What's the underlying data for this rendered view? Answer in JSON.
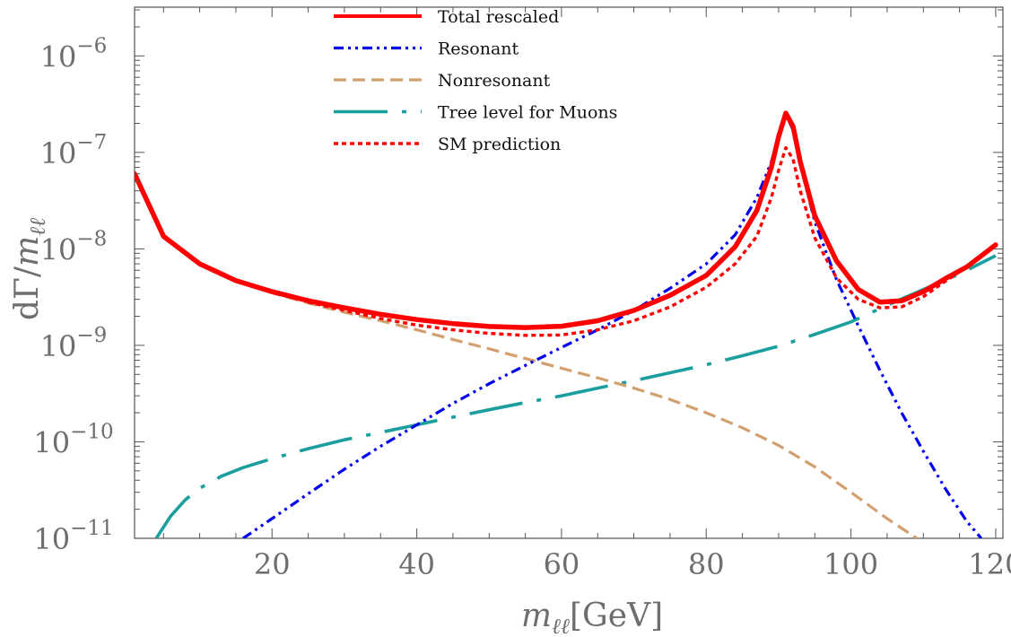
{
  "chart_data": {
    "type": "line",
    "title": "",
    "xlabel_parts": [
      "m",
      "ℓℓ",
      "[GeV]"
    ],
    "ylabel_parts": [
      "dΓ/",
      "m",
      "ℓℓ"
    ],
    "x_axis": {
      "range": [
        1,
        121
      ],
      "ticks": [
        20,
        40,
        60,
        80,
        100,
        120
      ],
      "tick_labels": [
        "20",
        "40",
        "60",
        "80",
        "100",
        "120"
      ]
    },
    "y_axis": {
      "scale": "log",
      "range": [
        1e-11,
        3.2e-06
      ],
      "ticks": [
        1e-11,
        1e-10,
        1e-09,
        1e-08,
        1e-07,
        1e-06
      ],
      "tick_exponents": [
        "−11",
        "−10",
        "−9",
        "−8",
        "−7",
        "−6"
      ],
      "tick_base": "10"
    },
    "legend_position": "top-center",
    "grid": false,
    "series": [
      {
        "name": "Total rescaled",
        "color": "#ff0000",
        "style": "solid",
        "x": [
          1,
          5,
          10,
          15,
          20,
          25,
          30,
          35,
          40,
          45,
          50,
          55,
          60,
          65,
          70,
          75,
          80,
          84,
          87,
          89,
          90,
          91,
          92,
          93,
          95,
          98,
          101,
          104,
          107,
          110,
          113,
          116,
          120
        ],
        "y": [
          6e-08,
          1.35e-08,
          7e-09,
          4.7e-09,
          3.6e-09,
          2.9e-09,
          2.45e-09,
          2.1e-09,
          1.85e-09,
          1.68e-09,
          1.57e-09,
          1.53e-09,
          1.58e-09,
          1.8e-09,
          2.3e-09,
          3.3e-09,
          5.3e-09,
          1.05e-08,
          2.5e-08,
          7e-08,
          1.45e-07,
          2.55e-07,
          1.85e-07,
          8e-08,
          2.2e-08,
          7.5e-09,
          3.8e-09,
          2.8e-09,
          2.9e-09,
          3.6e-09,
          4.9e-09,
          6.5e-09,
          1.1e-08
        ]
      },
      {
        "name": "Resonant",
        "color": "#0000ee",
        "style": "dot-dash",
        "x": [
          16,
          20,
          25,
          30,
          35,
          40,
          45,
          50,
          55,
          60,
          65,
          70,
          75,
          80,
          84,
          87,
          89,
          90,
          91,
          92,
          93,
          95,
          98,
          101,
          104,
          107,
          110,
          113,
          116,
          118
        ],
        "y": [
          1e-11,
          1.6e-11,
          2.9e-11,
          5.2e-11,
          9e-11,
          1.5e-10,
          2.5e-10,
          4e-10,
          6.2e-10,
          9.5e-10,
          1.45e-09,
          2.3e-09,
          3.9e-09,
          7e-09,
          1.4e-08,
          3.4e-08,
          8e-08,
          1.5e-07,
          2.5e-07,
          1.7e-07,
          7.5e-08,
          1.9e-08,
          4.8e-09,
          1.6e-09,
          5.5e-10,
          2e-10,
          8e-11,
          3.3e-11,
          1.5e-11,
          1e-11
        ]
      },
      {
        "name": "Nonresonant",
        "color": "#d2a06e",
        "style": "dashed",
        "x": [
          1,
          5,
          10,
          15,
          20,
          25,
          30,
          35,
          40,
          45,
          50,
          55,
          60,
          65,
          70,
          75,
          80,
          85,
          90,
          95,
          100,
          105,
          110
        ],
        "y": [
          6e-08,
          1.35e-08,
          6.9e-09,
          4.6e-09,
          3.5e-09,
          2.75e-09,
          2.2e-09,
          1.8e-09,
          1.45e-09,
          1.15e-09,
          9.2e-10,
          7.3e-10,
          5.8e-10,
          4.6e-10,
          3.6e-10,
          2.75e-10,
          2e-10,
          1.4e-10,
          9.2e-11,
          5.5e-11,
          3e-11,
          1.6e-11,
          9e-12
        ]
      },
      {
        "name": "Tree level for Muons",
        "color": "#1a9e9e",
        "style": "long-dash-dot",
        "x": [
          4,
          6,
          8,
          10,
          13,
          16,
          20,
          25,
          30,
          35,
          40,
          45,
          50,
          55,
          60,
          65,
          70,
          75,
          80,
          85,
          90,
          95,
          100,
          105,
          110,
          115,
          120
        ],
        "y": [
          1e-11,
          1.7e-11,
          2.5e-11,
          3.3e-11,
          4.4e-11,
          5.4e-11,
          6.7e-11,
          8.5e-11,
          1.05e-10,
          1.25e-10,
          1.5e-10,
          1.8e-10,
          2.15e-10,
          2.55e-10,
          3e-10,
          3.6e-10,
          4.3e-10,
          5.2e-10,
          6.3e-10,
          7.8e-10,
          9.8e-10,
          1.3e-09,
          1.75e-09,
          2.6e-09,
          3.8e-09,
          5.5e-09,
          8.5e-09
        ]
      },
      {
        "name": "SM prediction",
        "color": "#ff0000",
        "style": "dotted",
        "x": [
          25,
          30,
          35,
          40,
          45,
          50,
          55,
          60,
          65,
          70,
          75,
          80,
          84,
          87,
          89,
          90,
          91,
          92,
          93,
          95,
          98,
          101,
          104,
          107,
          110,
          113,
          116,
          120
        ],
        "y": [
          2.8e-09,
          2.3e-09,
          1.9e-09,
          1.62e-09,
          1.45e-09,
          1.33e-09,
          1.27e-09,
          1.28e-09,
          1.45e-09,
          1.8e-09,
          2.5e-09,
          4e-09,
          7e-09,
          1.35e-08,
          3.4e-08,
          6.5e-08,
          1.12e-07,
          8.5e-08,
          4e-08,
          1.3e-08,
          5e-09,
          3e-09,
          2.45e-09,
          2.5e-09,
          3.2e-09,
          4.6e-09,
          6.5e-09,
          1.1e-08
        ]
      }
    ]
  }
}
